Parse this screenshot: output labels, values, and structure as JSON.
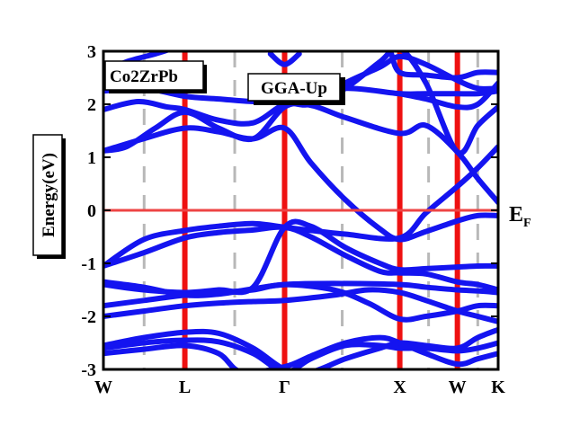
{
  "chart_data": {
    "type": "line",
    "ylabel": "Energy(eV)",
    "ylim": [
      -3,
      3
    ],
    "y_ticks": [
      "3",
      "2",
      "1",
      "0",
      "-1",
      "-2",
      "-3"
    ],
    "k_points": [
      {
        "label": "W",
        "pos": 0.0
      },
      {
        "label": "L",
        "pos": 0.707
      },
      {
        "label": "Γ",
        "pos": 1.573
      },
      {
        "label": "X",
        "pos": 2.573
      },
      {
        "label": "W",
        "pos": 3.073
      },
      {
        "label": "K",
        "pos": 3.427
      }
    ],
    "fermi_level": 0,
    "fermi_label": {
      "main": "E",
      "sub": "F"
    },
    "annotations": {
      "material": "Co2ZrPb",
      "method": "GGA-Up"
    },
    "colors": {
      "bands": "#1414f0",
      "fermi": "#ee4444",
      "kpath": "#ee1111",
      "dashes": "#b8b8b8",
      "frame": "#000000"
    },
    "series": [
      {
        "x": [
          0,
          0.35,
          0.707,
          1.0,
          1.3,
          1.573,
          1.8,
          2.1,
          2.573,
          2.8,
          3.073,
          3.25,
          3.427
        ],
        "y": [
          -1.05,
          -0.55,
          -0.38,
          -0.3,
          -0.25,
          -0.32,
          -0.38,
          -0.45,
          -0.52,
          -0.05,
          0.45,
          0.8,
          1.2
        ]
      },
      {
        "x": [
          0,
          0.35,
          0.707,
          1.0,
          1.3,
          1.573,
          1.8,
          2.1,
          2.4,
          2.573,
          2.8,
          3.073,
          3.25,
          3.427
        ],
        "y": [
          -1.05,
          -0.8,
          -0.52,
          -0.42,
          -0.37,
          -0.32,
          -0.5,
          -0.85,
          -1.15,
          -1.18,
          -1.2,
          -1.35,
          -1.4,
          -1.5
        ]
      },
      {
        "x": [
          0,
          0.35,
          0.707,
          1.0,
          1.3,
          1.573,
          1.8,
          2.1,
          2.4,
          2.573,
          2.8,
          3.073,
          3.25,
          3.427
        ],
        "y": [
          -1.4,
          -1.5,
          -1.55,
          -1.5,
          -1.45,
          -0.32,
          -0.3,
          -0.7,
          -1.0,
          -1.12,
          -1.1,
          -1.07,
          -1.05,
          -1.05
        ]
      },
      {
        "x": [
          0,
          0.35,
          0.707,
          1.0,
          1.3,
          1.573,
          2.0,
          2.573,
          2.8,
          3.073,
          3.25,
          3.427
        ],
        "y": [
          -1.35,
          -1.45,
          -1.6,
          -1.58,
          -1.48,
          -1.4,
          -1.38,
          -1.4,
          -1.45,
          -1.5,
          -1.52,
          -1.55
        ]
      },
      {
        "x": [
          0,
          0.35,
          0.707,
          1.0,
          1.3,
          1.573,
          2.0,
          2.3,
          2.573,
          2.8,
          3.073,
          3.25,
          3.427
        ],
        "y": [
          -1.8,
          -1.7,
          -1.6,
          -1.55,
          -1.5,
          -1.4,
          -1.5,
          -1.75,
          -2.05,
          -2.0,
          -1.9,
          -1.8,
          -1.8
        ]
      },
      {
        "x": [
          0,
          0.35,
          0.707,
          1.0,
          1.3,
          1.573,
          2.0,
          2.3,
          2.573,
          2.8,
          3.073,
          3.25,
          3.427
        ],
        "y": [
          -2.0,
          -1.9,
          -1.8,
          -1.75,
          -1.72,
          -1.7,
          -1.6,
          -1.5,
          -1.55,
          -1.7,
          -1.9,
          -2.0,
          -2.1
        ]
      },
      {
        "x": [
          0,
          0.35,
          0.707,
          1.0,
          1.3,
          1.573,
          1.8,
          2.1,
          2.4,
          2.573,
          2.8,
          3.073,
          3.25,
          3.427
        ],
        "y": [
          -2.55,
          -2.4,
          -2.3,
          -2.32,
          -2.6,
          -3.0,
          -3.05,
          -2.8,
          -2.6,
          -2.5,
          -2.55,
          -2.6,
          -2.4,
          -2.25
        ]
      },
      {
        "x": [
          0,
          0.35,
          0.707,
          1.0,
          1.3,
          1.573,
          1.8,
          2.1,
          2.4,
          2.573,
          2.8,
          3.073,
          3.25,
          3.427
        ],
        "y": [
          -2.6,
          -2.5,
          -2.45,
          -2.48,
          -2.7,
          -3.05,
          -2.8,
          -2.55,
          -2.55,
          -2.6,
          -2.6,
          -2.65,
          -2.6,
          -2.5
        ]
      },
      {
        "x": [
          0,
          0.35,
          0.707,
          1.0,
          1.2,
          1.573,
          1.8,
          2.1,
          2.4,
          2.573,
          2.8,
          3.073,
          3.25,
          3.427
        ],
        "y": [
          -2.7,
          -2.62,
          -2.55,
          -2.7,
          -3.05,
          -2.95,
          -2.75,
          -2.5,
          -2.4,
          -2.5,
          -2.7,
          -2.9,
          -2.8,
          -2.7
        ]
      },
      {
        "x": [
          0,
          0.35,
          0.707,
          1.0,
          1.3,
          1.573,
          1.8,
          2.1,
          2.4,
          2.573,
          2.8,
          3.073,
          3.25,
          3.427
        ],
        "y": [
          1.12,
          1.35,
          1.55,
          1.48,
          1.35,
          1.55,
          0.9,
          0.2,
          -0.35,
          -0.55,
          -0.4,
          -0.2,
          -0.1,
          -0.1
        ]
      },
      {
        "x": [
          0,
          0.2,
          0.45,
          0.707,
          1.0,
          1.3,
          1.573,
          1.8,
          2.1,
          2.573,
          2.8,
          3.073,
          3.25,
          3.427
        ],
        "y": [
          1.12,
          1.2,
          1.55,
          1.85,
          1.55,
          1.35,
          1.95,
          1.98,
          1.75,
          1.45,
          1.6,
          1.1,
          0.6,
          0.15
        ]
      },
      {
        "x": [
          0,
          0.3,
          0.55,
          0.707,
          1.0,
          1.3,
          1.573,
          1.8,
          2.1,
          2.4,
          2.573,
          2.8,
          3.073,
          3.25,
          3.427
        ],
        "y": [
          1.9,
          2.05,
          1.95,
          1.9,
          1.7,
          1.65,
          2.0,
          2.0,
          2.3,
          2.8,
          3.05,
          2.4,
          1.1,
          1.6,
          1.95
        ]
      },
      {
        "x": [
          0,
          0.35,
          0.707,
          1.0,
          1.3,
          1.573,
          1.8,
          2.1,
          2.573,
          2.8,
          3.073,
          3.25,
          3.427
        ],
        "y": [
          2.25,
          2.3,
          2.15,
          2.1,
          2.05,
          2.05,
          2.1,
          2.3,
          2.2,
          2.2,
          2.2,
          2.2,
          2.25
        ]
      },
      {
        "x": [
          0,
          0.2,
          0.45,
          0.6,
          0.707
        ],
        "y": [
          2.6,
          2.8,
          2.95,
          3.05,
          3.1
        ]
      },
      {
        "x": [
          1.45,
          1.573,
          1.7
        ],
        "y": [
          2.95,
          2.75,
          2.95
        ]
      },
      {
        "x": [
          1.9,
          2.1,
          2.4,
          2.573,
          2.8,
          3.073,
          3.25,
          3.427
        ],
        "y": [
          2.1,
          2.4,
          2.7,
          2.9,
          2.75,
          2.45,
          2.3,
          2.3
        ]
      },
      {
        "x": [
          2.5,
          2.573,
          2.8,
          3.073,
          3.25,
          3.427
        ],
        "y": [
          2.95,
          2.6,
          2.55,
          2.5,
          2.6,
          2.6
        ]
      },
      {
        "x": [
          2.573,
          2.8,
          3.073,
          3.25,
          3.427
        ],
        "y": [
          2.2,
          2.1,
          1.95,
          2.0,
          2.4
        ]
      }
    ]
  }
}
